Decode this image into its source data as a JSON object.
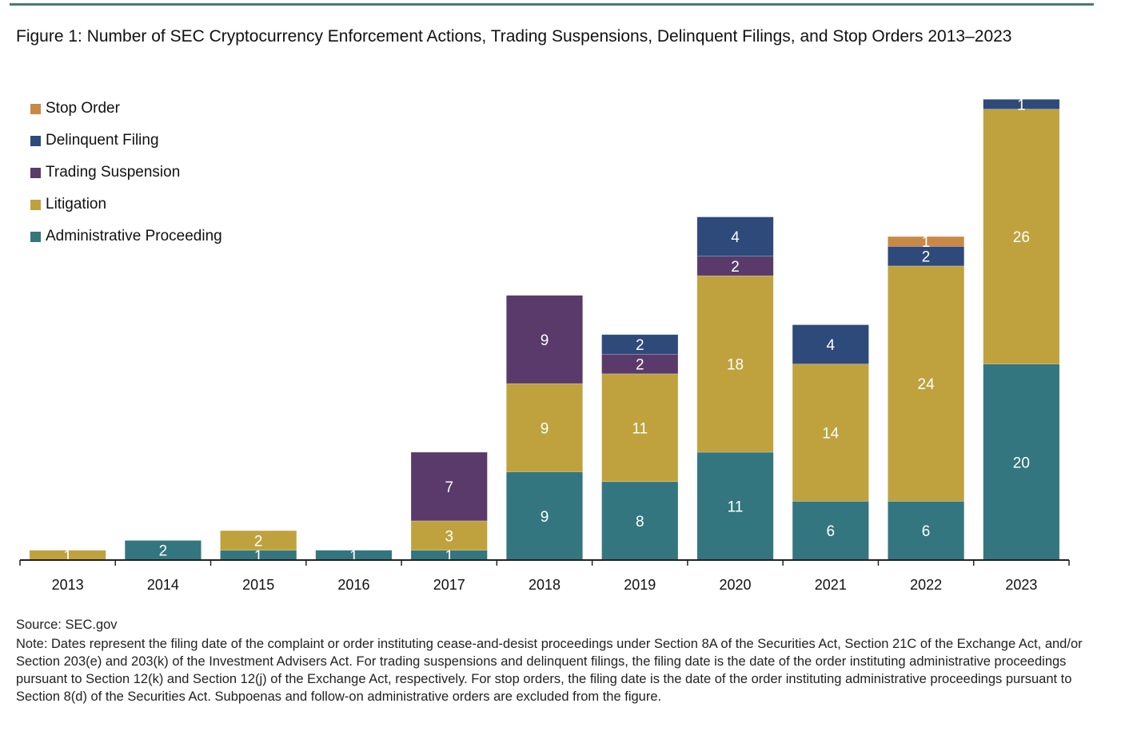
{
  "figure": {
    "title": "Figure 1: Number of SEC Cryptocurrency Enforcement Actions, Trading Suspensions, Delinquent Filings, and Stop Orders 2013–2023",
    "source": "Source: SEC.gov",
    "note": "Note: Dates represent the filing date of the complaint or order instituting cease-and-desist proceedings under Section 8A of the Securities Act, Section 21C of the Exchange Act, and/or Section 203(e) and 203(k) of the Investment Advisers Act. For trading suspensions and delinquent filings, the filing date is the date of the order instituting administrative proceedings pursuant to Section 12(k) and Section 12(j) of the Exchange Act, respectively. For stop orders, the filing date is the date of the order instituting administrative proceedings pursuant to Section 8(d) of the Securities Act. Subpoenas and follow-on administrative orders are excluded from the figure."
  },
  "legend": [
    {
      "label": "Stop Order",
      "color": "#c98846"
    },
    {
      "label": "Delinquent Filing",
      "color": "#2d4a7a"
    },
    {
      "label": "Trading Suspension",
      "color": "#5a3a6a"
    },
    {
      "label": "Litigation",
      "color": "#bfa23e"
    },
    {
      "label": "Administrative Proceeding",
      "color": "#33767f"
    }
  ],
  "chart_data": {
    "type": "bar",
    "stacked": true,
    "title": "Figure 1: Number of SEC Cryptocurrency Enforcement Actions, Trading Suspensions, Delinquent Filings, and Stop Orders 2013–2023",
    "xlabel": "",
    "ylabel": "",
    "ylim": [
      0,
      48
    ],
    "grid": false,
    "legend_position": "top-left",
    "categories": [
      "2013",
      "2014",
      "2015",
      "2016",
      "2017",
      "2018",
      "2019",
      "2020",
      "2021",
      "2022",
      "2023"
    ],
    "series": [
      {
        "name": "Administrative Proceeding",
        "color": "#33767f",
        "values": [
          0,
          2,
          1,
          1,
          1,
          9,
          8,
          11,
          6,
          6,
          20
        ]
      },
      {
        "name": "Litigation",
        "color": "#bfa23e",
        "values": [
          1,
          0,
          2,
          0,
          3,
          9,
          11,
          18,
          14,
          24,
          26
        ]
      },
      {
        "name": "Trading Suspension",
        "color": "#5a3a6a",
        "values": [
          0,
          0,
          0,
          0,
          7,
          9,
          2,
          2,
          0,
          0,
          0
        ]
      },
      {
        "name": "Delinquent Filing",
        "color": "#2d4a7a",
        "values": [
          0,
          0,
          0,
          0,
          0,
          0,
          2,
          4,
          4,
          2,
          1
        ]
      },
      {
        "name": "Stop Order",
        "color": "#c98846",
        "values": [
          0,
          0,
          0,
          0,
          0,
          0,
          0,
          0,
          0,
          1,
          0
        ]
      }
    ]
  }
}
